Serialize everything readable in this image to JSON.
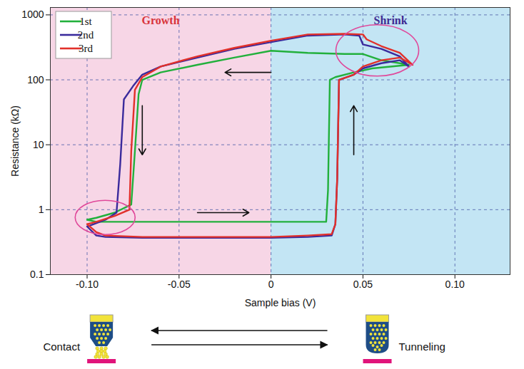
{
  "chart_data": {
    "type": "line",
    "x_label": "Sample bias (V)",
    "y_label": "Resistance (kΩ)",
    "xlim": [
      -0.12,
      0.13
    ],
    "xticks": [
      {
        "value": -0.1,
        "label": "-0.10"
      },
      {
        "value": -0.05,
        "label": "-0.05"
      },
      0,
      0.05,
      {
        "value": 0.1,
        "label": "0.10"
      }
    ],
    "ylim": [
      0.1,
      1300
    ],
    "yticks": [
      0.1,
      1,
      10,
      100,
      1000
    ],
    "log": "y",
    "grid": true,
    "legend": "top-left",
    "regions": [
      {
        "label": "Growth",
        "x": [
          -0.12,
          0
        ],
        "color": "#f7d6e6"
      },
      {
        "label": "Shrink",
        "x": [
          0,
          0.13
        ],
        "color": "#c3e5f4"
      }
    ],
    "series": [
      {
        "name": "1st",
        "color": "#22b03c",
        "x": [
          -0.1,
          -0.095,
          -0.09,
          -0.07,
          -0.05,
          -0.02,
          0,
          0.02,
          0.03,
          0.031,
          0.032,
          0.035,
          0.045,
          0.055,
          0.065,
          0.075,
          0.07,
          0.06,
          0.05,
          0.04,
          0.02,
          0,
          -0.02,
          -0.04,
          -0.06,
          -0.07,
          -0.072,
          -0.074,
          -0.076,
          -0.085,
          -0.095,
          -0.1
        ],
        "values": [
          0.7,
          0.65,
          0.65,
          0.65,
          0.65,
          0.65,
          0.65,
          0.65,
          0.65,
          2,
          100,
          110,
          130,
          150,
          160,
          170,
          180,
          200,
          250,
          250,
          260,
          280,
          220,
          170,
          130,
          100,
          60,
          8,
          1.2,
          0.9,
          0.75,
          0.7
        ]
      },
      {
        "name": "2nd",
        "color": "#3a2a9c",
        "x": [
          -0.1,
          -0.095,
          -0.09,
          -0.07,
          -0.05,
          -0.02,
          0,
          0.02,
          0.033,
          0.035,
          0.036,
          0.037,
          0.045,
          0.05,
          0.06,
          0.07,
          0.075,
          0.07,
          0.06,
          0.05,
          0.048,
          0.04,
          0.02,
          0,
          -0.02,
          -0.04,
          -0.06,
          -0.07,
          -0.075,
          -0.08,
          -0.082,
          -0.084,
          -0.09,
          -0.1
        ],
        "values": [
          0.55,
          0.4,
          0.38,
          0.37,
          0.37,
          0.37,
          0.37,
          0.38,
          0.4,
          0.6,
          3,
          100,
          120,
          150,
          180,
          200,
          160,
          230,
          300,
          350,
          480,
          500,
          480,
          380,
          300,
          220,
          160,
          120,
          80,
          50,
          5,
          0.9,
          0.7,
          0.55
        ]
      },
      {
        "name": "3rd",
        "color": "#e2302a",
        "x": [
          -0.1,
          -0.095,
          -0.09,
          -0.07,
          -0.05,
          -0.02,
          0,
          0.02,
          0.033,
          0.035,
          0.036,
          0.037,
          0.045,
          0.05,
          0.06,
          0.07,
          0.077,
          0.07,
          0.06,
          0.052,
          0.05,
          0.04,
          0.02,
          0,
          -0.02,
          -0.04,
          -0.06,
          -0.07,
          -0.074,
          -0.076,
          -0.077,
          -0.085,
          -0.095,
          -0.1
        ],
        "values": [
          0.6,
          0.45,
          0.4,
          0.38,
          0.38,
          0.38,
          0.38,
          0.4,
          0.42,
          0.6,
          3,
          100,
          120,
          160,
          200,
          220,
          170,
          260,
          330,
          420,
          500,
          510,
          500,
          400,
          310,
          230,
          160,
          110,
          70,
          8,
          1.0,
          0.8,
          0.65,
          0.6
        ]
      }
    ]
  },
  "diagram": {
    "labels": [
      "Contact",
      "Tunneling"
    ]
  }
}
